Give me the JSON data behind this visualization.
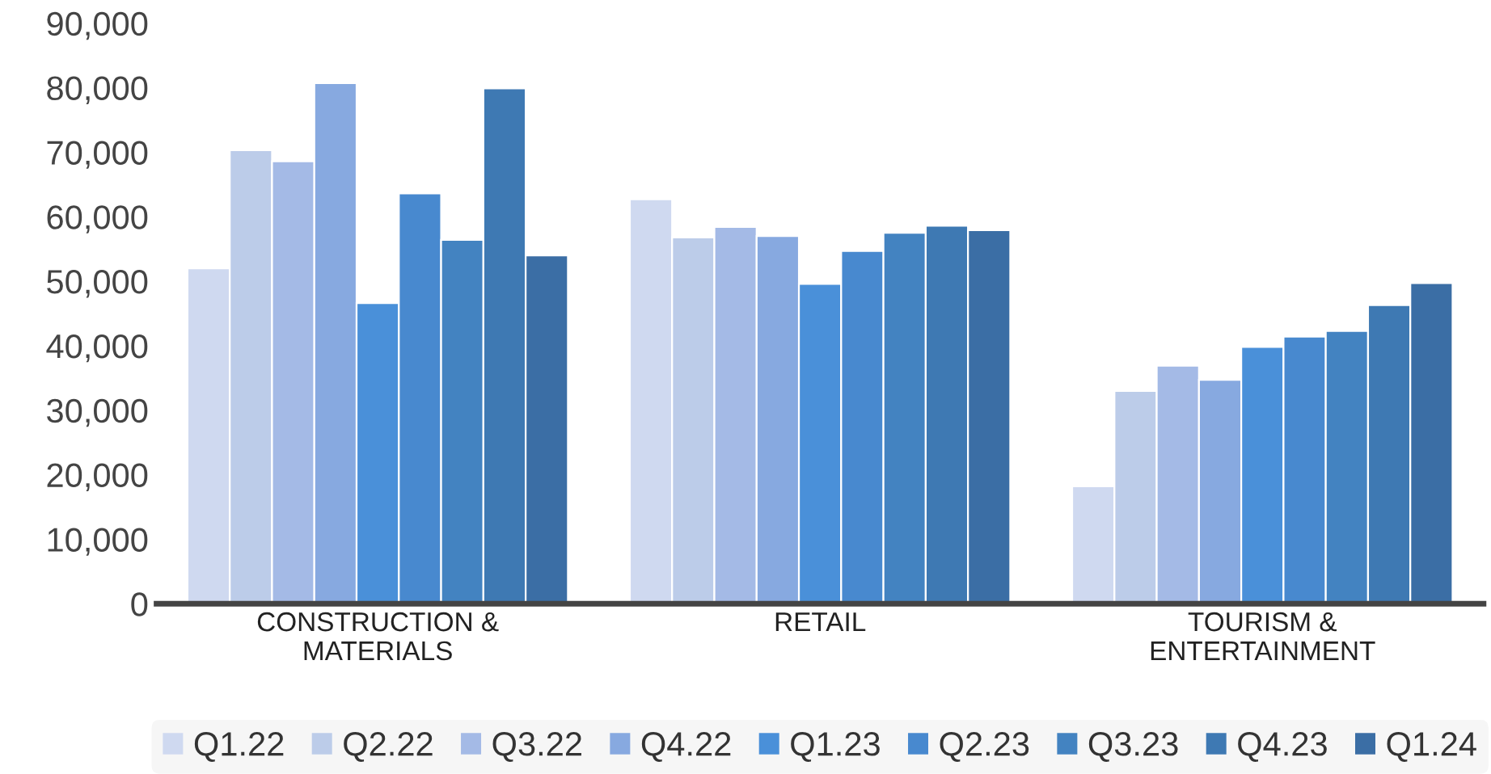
{
  "chart_data": {
    "type": "bar",
    "categories": [
      "CONSTRUCTION &\nMATERIALS",
      "RETAIL",
      "TOURISM &\nENTERTAINMENT"
    ],
    "series": [
      {
        "name": "Q1.22",
        "color": "#cfd9f0",
        "values": [
          52000,
          62700,
          18200
        ]
      },
      {
        "name": "Q2.22",
        "color": "#bccce9",
        "values": [
          70300,
          56800,
          33000
        ]
      },
      {
        "name": "Q3.22",
        "color": "#a4bae6",
        "values": [
          68600,
          58400,
          36900
        ]
      },
      {
        "name": "Q4.22",
        "color": "#87a9e0",
        "values": [
          80700,
          57000,
          34700
        ]
      },
      {
        "name": "Q1.23",
        "color": "#4a90d9",
        "values": [
          46600,
          49600,
          39800
        ]
      },
      {
        "name": "Q2.23",
        "color": "#4889cf",
        "values": [
          63600,
          54700,
          41400
        ]
      },
      {
        "name": "Q3.23",
        "color": "#4383c1",
        "values": [
          56400,
          57500,
          42300
        ]
      },
      {
        "name": "Q4.23",
        "color": "#3e79b3",
        "values": [
          79900,
          58600,
          46300
        ]
      },
      {
        "name": "Q1.24",
        "color": "#3b6ea5",
        "values": [
          54000,
          57900,
          49700
        ]
      }
    ],
    "ylim": [
      0,
      90000
    ],
    "yticks": [
      {
        "value": 0,
        "label": "0"
      },
      {
        "value": 10000,
        "label": "10,000"
      },
      {
        "value": 20000,
        "label": "20,000"
      },
      {
        "value": 30000,
        "label": "30,000"
      },
      {
        "value": 40000,
        "label": "40,000"
      },
      {
        "value": 50000,
        "label": "50,000"
      },
      {
        "value": 60000,
        "label": "60,000"
      },
      {
        "value": 70000,
        "label": "70,000"
      },
      {
        "value": 80000,
        "label": "80,000"
      },
      {
        "value": 90000,
        "label": "90,000"
      }
    ],
    "grid": false,
    "legend": "bottom"
  }
}
